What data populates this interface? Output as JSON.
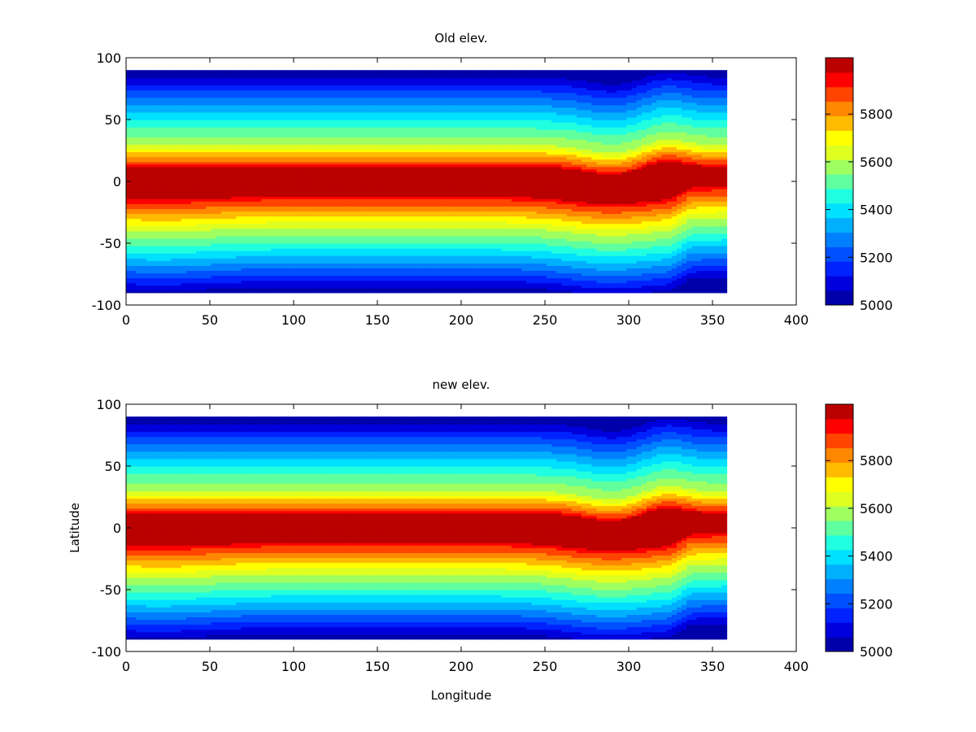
{
  "chart_data": [
    {
      "type": "heatmap",
      "subtype": "filled-contour",
      "title": "Old elev.",
      "xlabel": "",
      "ylabel": "",
      "xlim": [
        0,
        400
      ],
      "ylim": [
        -100,
        100
      ],
      "xticks": [
        "0",
        "50",
        "100",
        "150",
        "200",
        "250",
        "300",
        "350",
        "400"
      ],
      "yticks": [
        "100",
        "50",
        "0",
        "-50",
        "-100"
      ],
      "data_extent": {
        "lon": [
          0,
          358.5
        ],
        "lat": [
          -90,
          90
        ]
      },
      "field": {
        "description": "zonally banded elevation, maximum near equator, minimum at poles",
        "polar_value": 5000,
        "lat_at_5600": [
          -38,
          30
        ],
        "equatorial_core_over_5950": {
          "lat": [
            -12,
            12
          ]
        },
        "notable_features_lon": [
          290,
          330
        ]
      },
      "colorbar": {
        "min": 5000,
        "max": 5975,
        "levels": 16,
        "tick_labels": [
          "5000",
          "5200",
          "5400",
          "5600",
          "5800"
        ],
        "colors": [
          "#0000aa",
          "#0000dd",
          "#0022ff",
          "#0050ff",
          "#0080ff",
          "#00b0ff",
          "#00e0ff",
          "#20ffdf",
          "#60ff9f",
          "#a0ff60",
          "#dfff20",
          "#ffff00",
          "#ffbb00",
          "#ff8800",
          "#ff4400",
          "#ff0000",
          "#bb0000"
        ]
      }
    },
    {
      "type": "heatmap",
      "subtype": "filled-contour",
      "title": "new elev.",
      "xlabel": "Longitude",
      "ylabel": "Latitude",
      "xlim": [
        0,
        400
      ],
      "ylim": [
        -100,
        100
      ],
      "xticks": [
        "0",
        "50",
        "100",
        "150",
        "200",
        "250",
        "300",
        "350",
        "400"
      ],
      "yticks": [
        "100",
        "50",
        "0",
        "-50",
        "-100"
      ],
      "data_extent": {
        "lon": [
          0,
          358.5
        ],
        "lat": [
          -90,
          90
        ]
      },
      "field": {
        "description": "zonally banded elevation, nearly identical to old elevation",
        "polar_value": 5000,
        "lat_at_5600": [
          -38,
          30
        ],
        "equatorial_core_over_5950": {
          "lat": [
            -12,
            12
          ]
        },
        "notable_features_lon": [
          290,
          330
        ]
      },
      "colorbar": {
        "min": 5000,
        "max": 5975,
        "levels": 16,
        "tick_labels": [
          "5000",
          "5200",
          "5400",
          "5600",
          "5800"
        ],
        "colors": [
          "#0000aa",
          "#0000dd",
          "#0022ff",
          "#0050ff",
          "#0080ff",
          "#00b0ff",
          "#00e0ff",
          "#20ffdf",
          "#60ff9f",
          "#a0ff60",
          "#dfff20",
          "#ffff00",
          "#ffbb00",
          "#ff8800",
          "#ff4400",
          "#ff0000",
          "#bb0000"
        ]
      }
    }
  ]
}
